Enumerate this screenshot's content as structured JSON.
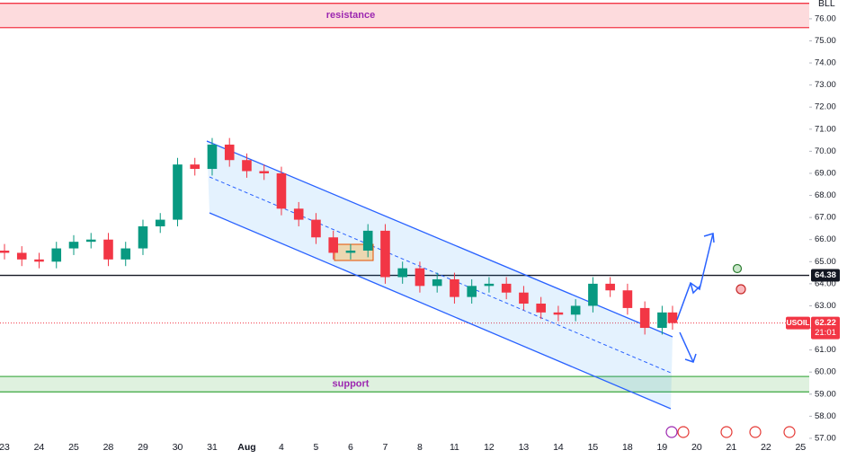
{
  "chart_data": {
    "type": "candlestick",
    "symbol": "USOIL",
    "scale_label": "BLL",
    "up_color": "#089981",
    "down_color": "#f23645",
    "x": [
      0,
      0.5,
      1,
      1.5,
      2,
      2.5,
      3,
      3.5,
      4,
      4.5,
      5,
      5.5,
      6,
      6.5,
      7,
      7.5,
      8,
      8.5,
      9,
      9.5,
      10,
      10.5,
      11,
      11.5,
      12,
      12.5,
      13,
      13.5,
      14,
      14.5,
      15,
      15.5,
      16,
      16.5,
      17,
      17.5,
      18,
      18.5,
      19,
      19.3
    ],
    "open": [
      65.5,
      65.4,
      65.1,
      65.0,
      65.6,
      65.9,
      66.0,
      65.1,
      65.6,
      66.6,
      66.9,
      69.4,
      69.2,
      70.3,
      69.6,
      69.1,
      69.0,
      67.4,
      66.9,
      66.1,
      65.4,
      65.5,
      66.4,
      64.3,
      64.7,
      63.9,
      64.2,
      63.4,
      63.9,
      64.0,
      63.6,
      63.1,
      62.7,
      62.6,
      63.0,
      64.0,
      63.7,
      62.9,
      62.0,
      62.7
    ],
    "high": [
      65.8,
      65.7,
      65.4,
      65.9,
      66.2,
      66.3,
      66.3,
      65.9,
      66.9,
      67.2,
      69.7,
      69.7,
      70.6,
      70.6,
      69.9,
      69.4,
      69.3,
      67.7,
      67.2,
      66.4,
      65.8,
      66.7,
      66.7,
      65.0,
      65.0,
      64.5,
      64.5,
      64.2,
      64.3,
      64.3,
      63.9,
      63.4,
      63.0,
      63.3,
      64.3,
      64.3,
      64.0,
      63.2,
      63.0,
      63.0
    ],
    "low": [
      65.1,
      64.8,
      64.7,
      64.7,
      65.3,
      65.6,
      64.8,
      64.8,
      65.3,
      66.3,
      66.6,
      68.9,
      68.9,
      69.3,
      68.8,
      68.7,
      67.1,
      66.6,
      65.8,
      65.1,
      65.1,
      65.2,
      64.0,
      64.0,
      63.6,
      63.6,
      63.1,
      63.1,
      63.6,
      63.3,
      62.8,
      62.4,
      62.3,
      62.3,
      62.7,
      63.4,
      62.6,
      61.7,
      61.7,
      61.92
    ],
    "close": [
      65.4,
      65.1,
      65.0,
      65.6,
      65.9,
      66.0,
      65.1,
      65.6,
      66.6,
      66.9,
      69.4,
      69.2,
      70.3,
      69.6,
      69.1,
      69.0,
      67.4,
      66.9,
      66.1,
      65.4,
      65.5,
      66.4,
      64.3,
      64.7,
      63.9,
      64.2,
      63.4,
      63.9,
      64.0,
      63.6,
      63.1,
      62.7,
      62.6,
      63.0,
      64.0,
      63.7,
      62.9,
      62.0,
      62.7,
      62.22
    ],
    "xlim": [
      -0.13,
      23.25
    ],
    "xticks": [
      {
        "value": 0,
        "label": "23"
      },
      {
        "value": 1,
        "label": "24"
      },
      {
        "value": 2,
        "label": "25"
      },
      {
        "value": 3,
        "label": "28"
      },
      {
        "value": 4,
        "label": "29"
      },
      {
        "value": 5,
        "label": "30"
      },
      {
        "value": 6,
        "label": "31"
      },
      {
        "value": 7,
        "label": "Aug"
      },
      {
        "value": 8,
        "label": "4"
      },
      {
        "value": 9,
        "label": "5"
      },
      {
        "value": 10,
        "label": "6"
      },
      {
        "value": 11,
        "label": "7"
      },
      {
        "value": 12,
        "label": "8"
      },
      {
        "value": 13,
        "label": "11"
      },
      {
        "value": 14,
        "label": "12"
      },
      {
        "value": 15,
        "label": "13"
      },
      {
        "value": 16,
        "label": "14"
      },
      {
        "value": 17,
        "label": "15"
      },
      {
        "value": 18,
        "label": "18"
      },
      {
        "value": 19,
        "label": "19"
      },
      {
        "value": 20,
        "label": "20"
      },
      {
        "value": 21,
        "label": "21"
      },
      {
        "value": 22,
        "label": "22"
      },
      {
        "value": 23,
        "label": "25"
      }
    ],
    "ylim": [
      56.51,
      76.85
    ],
    "yticks": [
      {
        "value": 57,
        "label": "57.00"
      },
      {
        "value": 58,
        "label": "58.00"
      },
      {
        "value": 59,
        "label": "59.00"
      },
      {
        "value": 60,
        "label": "60.00"
      },
      {
        "value": 61,
        "label": "61.00"
      },
      {
        "value": 62,
        "label": "62.00"
      },
      {
        "value": 63,
        "label": "63.00"
      },
      {
        "value": 64,
        "label": "64.00"
      },
      {
        "value": 65,
        "label": "65.00"
      },
      {
        "value": 66,
        "label": "66.00"
      },
      {
        "value": 67,
        "label": "67.00"
      },
      {
        "value": 68,
        "label": "68.00"
      },
      {
        "value": 69,
        "label": "69.00"
      },
      {
        "value": 70,
        "label": "70.00"
      },
      {
        "value": 71,
        "label": "71.00"
      },
      {
        "value": 72,
        "label": "72.00"
      },
      {
        "value": 73,
        "label": "73.00"
      },
      {
        "value": 74,
        "label": "74.00"
      },
      {
        "value": 75,
        "label": "75.00"
      },
      {
        "value": 76,
        "label": "76.00"
      }
    ],
    "level": 64.38,
    "current_price": 62.22,
    "current_time": "21:01",
    "zones": [
      {
        "label": "resistance",
        "low": 75.6,
        "high": 76.7,
        "color": "#f23645"
      },
      {
        "label": "support",
        "low": 59.1,
        "high": 59.8,
        "color": "#4caf50"
      }
    ]
  }
}
